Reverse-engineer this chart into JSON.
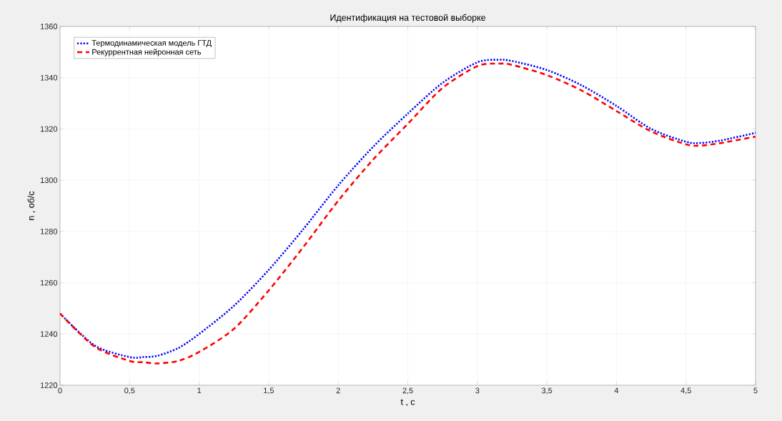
{
  "chart_data": {
    "type": "line",
    "title": "Идентификация на тестовой выборке",
    "xlabel": "t , c",
    "ylabel": "n , об/с",
    "x": [
      0,
      0.25,
      0.5,
      0.6,
      0.7,
      0.85,
      1.0,
      1.25,
      1.5,
      1.75,
      2.0,
      2.25,
      2.5,
      2.75,
      3.0,
      3.15,
      3.25,
      3.5,
      3.75,
      4.0,
      4.25,
      4.5,
      4.6,
      4.75,
      5.0
    ],
    "series": [
      {
        "name": "Термодинамическая модель ГТД",
        "color": "#0000ff",
        "line_style": "dotted",
        "values": [
          1248,
          1235.5,
          1231,
          1231,
          1231.5,
          1234.5,
          1240,
          1251,
          1265,
          1281,
          1298,
          1313,
          1326,
          1338,
          1346,
          1347,
          1346.5,
          1343,
          1337,
          1329,
          1320,
          1315,
          1314.5,
          1315.5,
          1318.5
        ]
      },
      {
        "name": "Рекуррентная нейронная сеть",
        "color": "#ff0000",
        "line_style": "dashed",
        "values": [
          1248,
          1235,
          1229.5,
          1229,
          1228.5,
          1229.5,
          1233,
          1242,
          1257,
          1274,
          1292,
          1308,
          1322,
          1336,
          1344.5,
          1345.5,
          1345,
          1341,
          1335,
          1327,
          1319,
          1314,
          1313.5,
          1314.5,
          1317
        ]
      }
    ],
    "xlim": [
      0,
      5
    ],
    "ylim": [
      1220,
      1360
    ],
    "xticks": [
      0,
      {
        "value": 0.5,
        "label": "0,5"
      },
      1,
      {
        "value": 1.5,
        "label": "1,5"
      },
      2,
      {
        "value": 2.5,
        "label": "2,5"
      },
      3,
      {
        "value": 3.5,
        "label": "3,5"
      },
      4,
      {
        "value": 4.5,
        "label": "4,5"
      },
      5
    ],
    "yticks": [
      1220,
      1240,
      1260,
      1280,
      1300,
      1320,
      1340,
      1360
    ],
    "grid": true,
    "legend": "top left",
    "marker": "none"
  }
}
